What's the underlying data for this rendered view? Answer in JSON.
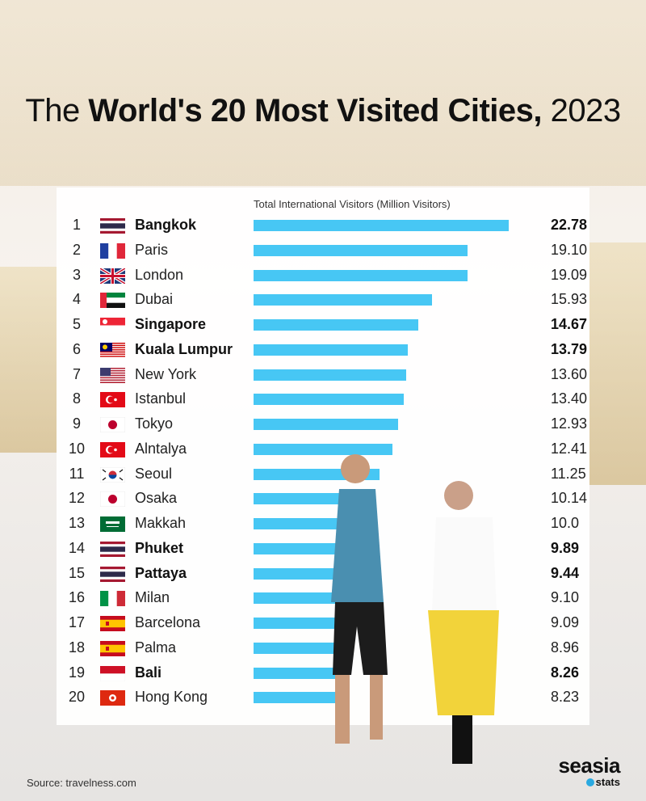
{
  "title": {
    "pre": "The ",
    "bold": "World's 20 Most Visited Cities,",
    "post": " 2023"
  },
  "source": "Source: travelness.com",
  "logo": {
    "line1": "seasia",
    "line2": "stats"
  },
  "colors": {
    "bar": "#47c7f4"
  },
  "chart_data": {
    "type": "bar",
    "orientation": "horizontal",
    "xlabel": "Total International Visitors (Million Visitors)",
    "xlim": [
      0,
      22.78
    ],
    "grid": false,
    "rows": [
      {
        "rank": "1",
        "city": "Bangkok",
        "flag": "thailand-flag-icon",
        "value": 22.78,
        "label": "22.78",
        "bold": true
      },
      {
        "rank": "2",
        "city": "Paris",
        "flag": "france-flag-icon",
        "value": 19.1,
        "label": "19.10",
        "bold": false
      },
      {
        "rank": "3",
        "city": "London",
        "flag": "uk-flag-icon",
        "value": 19.09,
        "label": "19.09",
        "bold": false
      },
      {
        "rank": "4",
        "city": "Dubai",
        "flag": "uae-flag-icon",
        "value": 15.93,
        "label": "15.93",
        "bold": false
      },
      {
        "rank": "5",
        "city": "Singapore",
        "flag": "singapore-flag-icon",
        "value": 14.67,
        "label": "14.67",
        "bold": true
      },
      {
        "rank": "6",
        "city": "Kuala Lumpur",
        "flag": "malaysia-flag-icon",
        "value": 13.79,
        "label": "13.79",
        "bold": true
      },
      {
        "rank": "7",
        "city": "New York",
        "flag": "usa-flag-icon",
        "value": 13.6,
        "label": "13.60",
        "bold": false
      },
      {
        "rank": "8",
        "city": "Istanbul",
        "flag": "turkey-flag-icon",
        "value": 13.4,
        "label": "13.40",
        "bold": false
      },
      {
        "rank": "9",
        "city": "Tokyo",
        "flag": "japan-flag-icon",
        "value": 12.93,
        "label": "12.93",
        "bold": false
      },
      {
        "rank": "10",
        "city": "Alntalya",
        "flag": "turkey-flag-icon",
        "value": 12.41,
        "label": "12.41",
        "bold": false
      },
      {
        "rank": "11",
        "city": "Seoul",
        "flag": "south-korea-flag-icon",
        "value": 11.25,
        "label": "11.25",
        "bold": false
      },
      {
        "rank": "12",
        "city": "Osaka",
        "flag": "japan-flag-icon",
        "value": 10.14,
        "label": "10.14",
        "bold": false
      },
      {
        "rank": "13",
        "city": "Makkah",
        "flag": "saudi-arabia-flag-icon",
        "value": 10.0,
        "label": "10.0",
        "bold": false
      },
      {
        "rank": "14",
        "city": "Phuket",
        "flag": "thailand-flag-icon",
        "value": 9.89,
        "label": "9.89",
        "bold": true
      },
      {
        "rank": "15",
        "city": "Pattaya",
        "flag": "thailand-flag-icon",
        "value": 9.44,
        "label": "9.44",
        "bold": true
      },
      {
        "rank": "16",
        "city": "Milan",
        "flag": "italy-flag-icon",
        "value": 9.1,
        "label": "9.10",
        "bold": false
      },
      {
        "rank": "17",
        "city": "Barcelona",
        "flag": "spain-flag-icon",
        "value": 9.09,
        "label": "9.09",
        "bold": false
      },
      {
        "rank": "18",
        "city": "Palma",
        "flag": "spain-flag-icon",
        "value": 8.96,
        "label": "8.96",
        "bold": false
      },
      {
        "rank": "19",
        "city": "Bali",
        "flag": "indonesia-flag-icon",
        "value": 8.26,
        "label": "8.26",
        "bold": true
      },
      {
        "rank": "20",
        "city": "Hong Kong",
        "flag": "hong-kong-flag-icon",
        "value": 8.23,
        "label": "8.23",
        "bold": false
      }
    ]
  }
}
